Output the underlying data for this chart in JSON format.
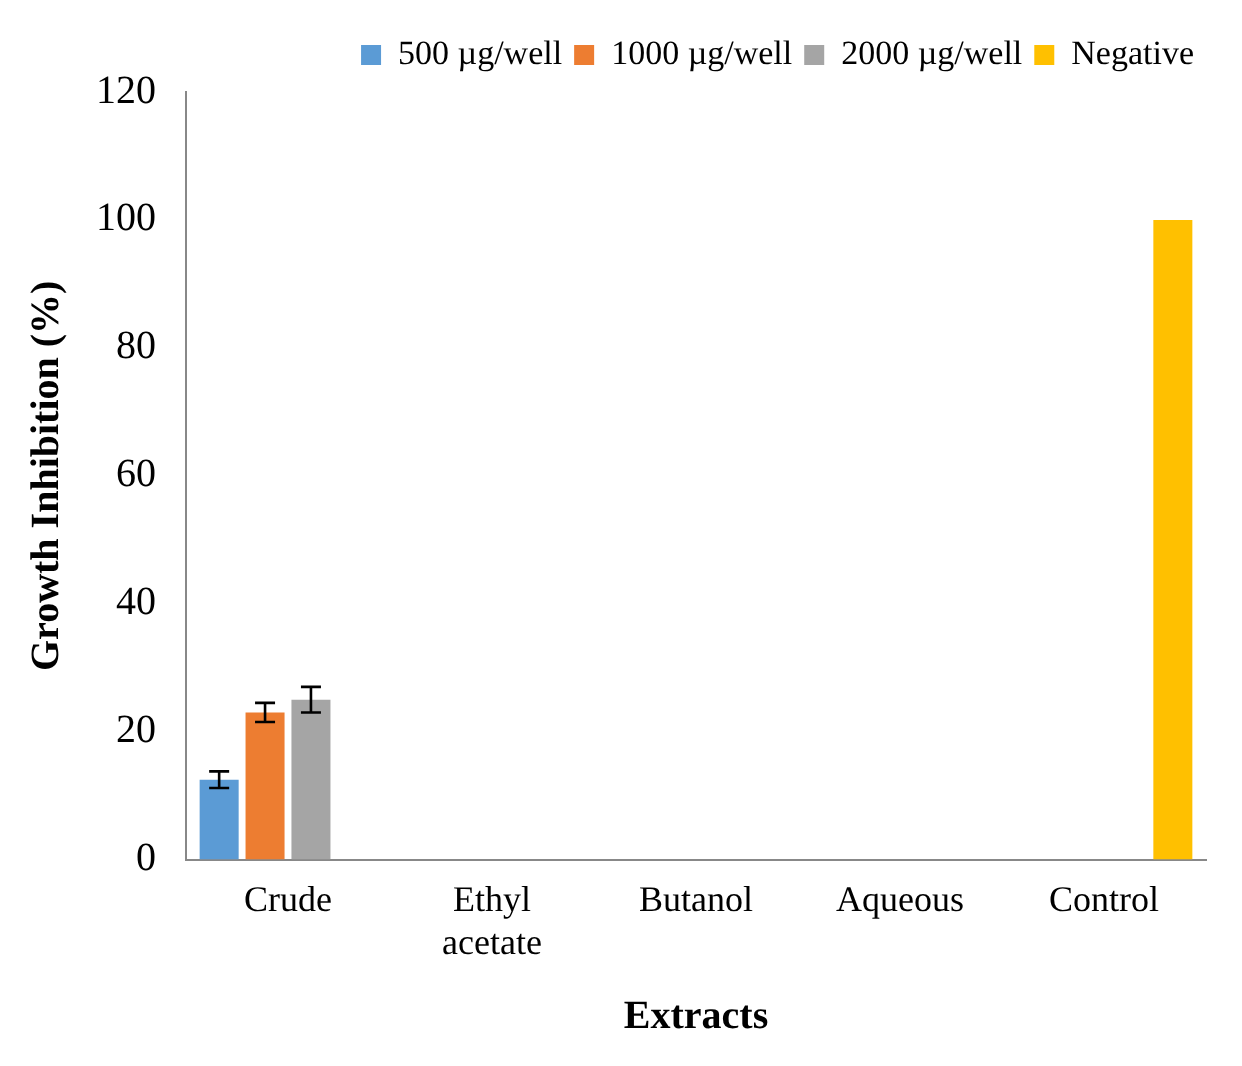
{
  "chart_data": {
    "type": "bar",
    "xlabel": "Extracts",
    "ylabel": "Growth Inhibition (%)",
    "categories": [
      "Crude",
      "Ethyl acetate",
      "Butanol",
      "Aqueous",
      "Control"
    ],
    "series": [
      {
        "name": "500 µg/well",
        "color": "#5b9bd5",
        "values": [
          12.5,
          null,
          null,
          null,
          null
        ],
        "errors": [
          1.3,
          null,
          null,
          null,
          null
        ]
      },
      {
        "name": "1000 µg/well",
        "color": "#ed7d31",
        "values": [
          23,
          null,
          null,
          null,
          null
        ],
        "errors": [
          1.5,
          null,
          null,
          null,
          null
        ]
      },
      {
        "name": "2000 µg/well",
        "color": "#a5a5a5",
        "values": [
          25,
          null,
          null,
          null,
          null
        ],
        "errors": [
          2,
          null,
          null,
          null,
          null
        ]
      },
      {
        "name": "Negative",
        "color": "#ffc000",
        "values": [
          null,
          null,
          null,
          null,
          100
        ]
      }
    ],
    "ylim": [
      0,
      120
    ],
    "yticks": [
      0,
      20,
      40,
      60,
      80,
      100,
      120
    ],
    "grid": false,
    "legend": "top right"
  }
}
